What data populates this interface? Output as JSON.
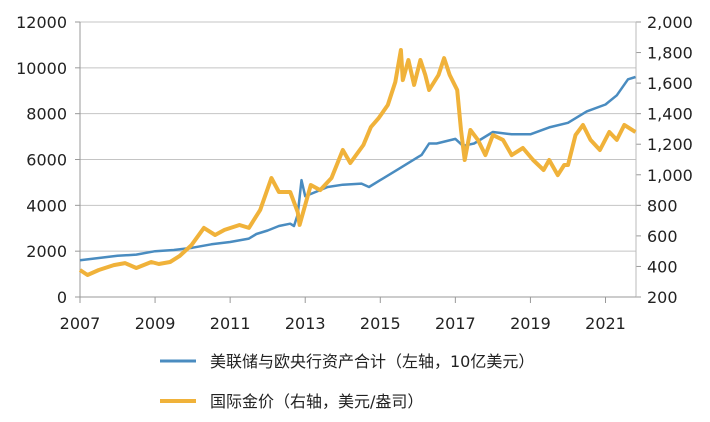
{
  "chart_data": {
    "type": "line",
    "title": "",
    "grid": true,
    "legend_position": "bottom",
    "x_ticks": [
      "2007",
      "2009",
      "2011",
      "2013",
      "2015",
      "2017",
      "2019",
      "2021"
    ],
    "xlim": [
      2007,
      2021.8
    ],
    "y_left": {
      "ylim": [
        0,
        12000
      ],
      "ticks": [
        "0",
        "2000",
        "4000",
        "6000",
        "8000",
        "10000",
        "12000"
      ]
    },
    "y_right": {
      "ylim": [
        200,
        2000
      ],
      "ticks": [
        "200",
        "400",
        "600",
        "800",
        "1,000",
        "1,200",
        "1,400",
        "1,600",
        "1,800",
        "2,000"
      ]
    },
    "series": [
      {
        "name": "美联储与欧央行资产合计（左轴，10亿美元）",
        "axis": "left",
        "color": "#4a8cc0",
        "x": [
          2007.0,
          2007.5,
          2008.0,
          2008.5,
          2009.0,
          2009.5,
          2010.0,
          2010.5,
          2011.0,
          2011.5,
          2011.7,
          2012.0,
          2012.3,
          2012.6,
          2012.7,
          2012.8,
          2012.9,
          2013.0,
          2013.3,
          2013.6,
          2014.0,
          2014.5,
          2014.7,
          2015.0,
          2015.5,
          2016.0,
          2016.1,
          2016.3,
          2016.5,
          2017.0,
          2017.2,
          2017.5,
          2018.0,
          2018.5,
          2019.0,
          2019.5,
          2020.0,
          2020.5,
          2021.0,
          2021.3,
          2021.6,
          2021.8
        ],
        "y": [
          1600,
          1700,
          1800,
          1850,
          2000,
          2050,
          2150,
          2300,
          2400,
          2550,
          2750,
          2900,
          3100,
          3200,
          3100,
          3600,
          5100,
          4400,
          4600,
          4800,
          4900,
          4950,
          4800,
          5100,
          5600,
          6100,
          6200,
          6700,
          6700,
          6900,
          6600,
          6700,
          7200,
          7100,
          7100,
          7400,
          7600,
          8100,
          8400,
          8800,
          9500,
          9600
        ]
      },
      {
        "name": "国际金价（右轴，美元/盎司）",
        "axis": "right",
        "color": "#f0b23a",
        "x": [
          2007.0,
          2007.2,
          2007.5,
          2007.9,
          2008.2,
          2008.5,
          2008.9,
          2009.1,
          2009.4,
          2009.65,
          2009.97,
          2010.3,
          2010.6,
          2010.85,
          2011.25,
          2011.5,
          2011.8,
          2012.1,
          2012.3,
          2012.6,
          2012.8,
          2012.85,
          2013.15,
          2013.4,
          2013.7,
          2014.0,
          2014.2,
          2014.55,
          2014.75,
          2014.96,
          2015.2,
          2015.4,
          2015.55,
          2015.6,
          2015.75,
          2015.9,
          2016.07,
          2016.2,
          2016.3,
          2016.55,
          2016.7,
          2016.85,
          2017.05,
          2017.15,
          2017.25,
          2017.4,
          2017.6,
          2017.8,
          2018.0,
          2018.27,
          2018.5,
          2018.8,
          2019.07,
          2019.35,
          2019.5,
          2019.73,
          2019.9,
          2020.0,
          2020.2,
          2020.4,
          2020.6,
          2020.85,
          2021.1,
          2021.3,
          2021.5,
          2021.8
        ],
        "y": [
          377,
          344,
          377,
          409,
          422,
          390,
          429,
          416,
          429,
          468,
          540,
          652,
          606,
          639,
          671,
          652,
          770,
          979,
          887,
          887,
          756,
          672,
          933,
          900,
          979,
          1162,
          1077,
          1195,
          1313,
          1372,
          1457,
          1607,
          1817,
          1620,
          1751,
          1588,
          1751,
          1653,
          1555,
          1653,
          1764,
          1653,
          1555,
          1293,
          1097,
          1293,
          1228,
          1129,
          1260,
          1228,
          1129,
          1175,
          1097,
          1031,
          1097,
          998,
          1064,
          1064,
          1260,
          1326,
          1228,
          1162,
          1280,
          1228,
          1326,
          1280
        ]
      }
    ]
  }
}
